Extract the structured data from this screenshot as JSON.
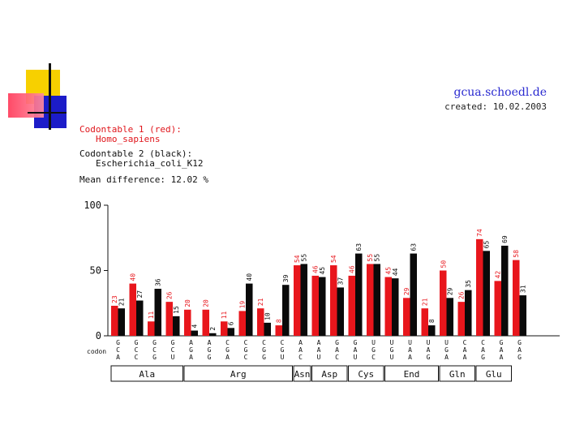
{
  "header": {
    "site": "gcua.schoedl.de",
    "created": "created: 10.02.2003",
    "table1_label": "Codontable 1 (red):",
    "table1_name": "Homo_sapiens",
    "table2_label": "Codontable 2 (black):",
    "table2_name": "Escherichia_coli_K12",
    "mean_difference": "Mean difference: 12.02 %"
  },
  "colors": {
    "series1": "#e8161c",
    "series2": "#0a0a0a",
    "site_link": "#2a2ad0"
  },
  "chart_data": {
    "type": "bar",
    "title": "",
    "xlabel": "codon",
    "ylabel": "",
    "ylim": [
      0,
      100
    ],
    "yticks": [
      0,
      50,
      100
    ],
    "categories": [
      "GCA",
      "GCC",
      "GCG",
      "GCU",
      "AGA",
      "AGG",
      "CGA",
      "CGC",
      "CGG",
      "CGU",
      "AAC",
      "AAU",
      "GAC",
      "GAU",
      "UGC",
      "UGU",
      "UAA",
      "UAG",
      "UGA",
      "CAA",
      "CAG",
      "GAA",
      "GAG"
    ],
    "series": [
      {
        "name": "Codontable 1 (red)",
        "values": [
          23,
          40,
          11,
          26,
          20,
          20,
          11,
          19,
          21,
          8,
          54,
          46,
          54,
          46,
          55,
          45,
          29,
          21,
          50,
          26,
          74,
          42,
          58
        ]
      },
      {
        "name": "Codontable 2 (black)",
        "values": [
          21,
          27,
          36,
          15,
          4,
          2,
          6,
          40,
          10,
          39,
          55,
          45,
          37,
          63,
          55,
          44,
          63,
          8,
          29,
          35,
          65,
          69,
          31
        ]
      }
    ],
    "groups": [
      {
        "label": "Ala",
        "from": 0,
        "to": 3
      },
      {
        "label": "Arg",
        "from": 4,
        "to": 9
      },
      {
        "label": "Asn",
        "from": 10,
        "to": 10
      },
      {
        "label": "Asp",
        "from": 11,
        "to": 12
      },
      {
        "label": "Cys",
        "from": 13,
        "to": 14
      },
      {
        "label": "End",
        "from": 15,
        "to": 17
      },
      {
        "label": "Gln",
        "from": 18,
        "to": 19
      },
      {
        "label": "Glu",
        "from": 20,
        "to": 21
      }
    ]
  }
}
